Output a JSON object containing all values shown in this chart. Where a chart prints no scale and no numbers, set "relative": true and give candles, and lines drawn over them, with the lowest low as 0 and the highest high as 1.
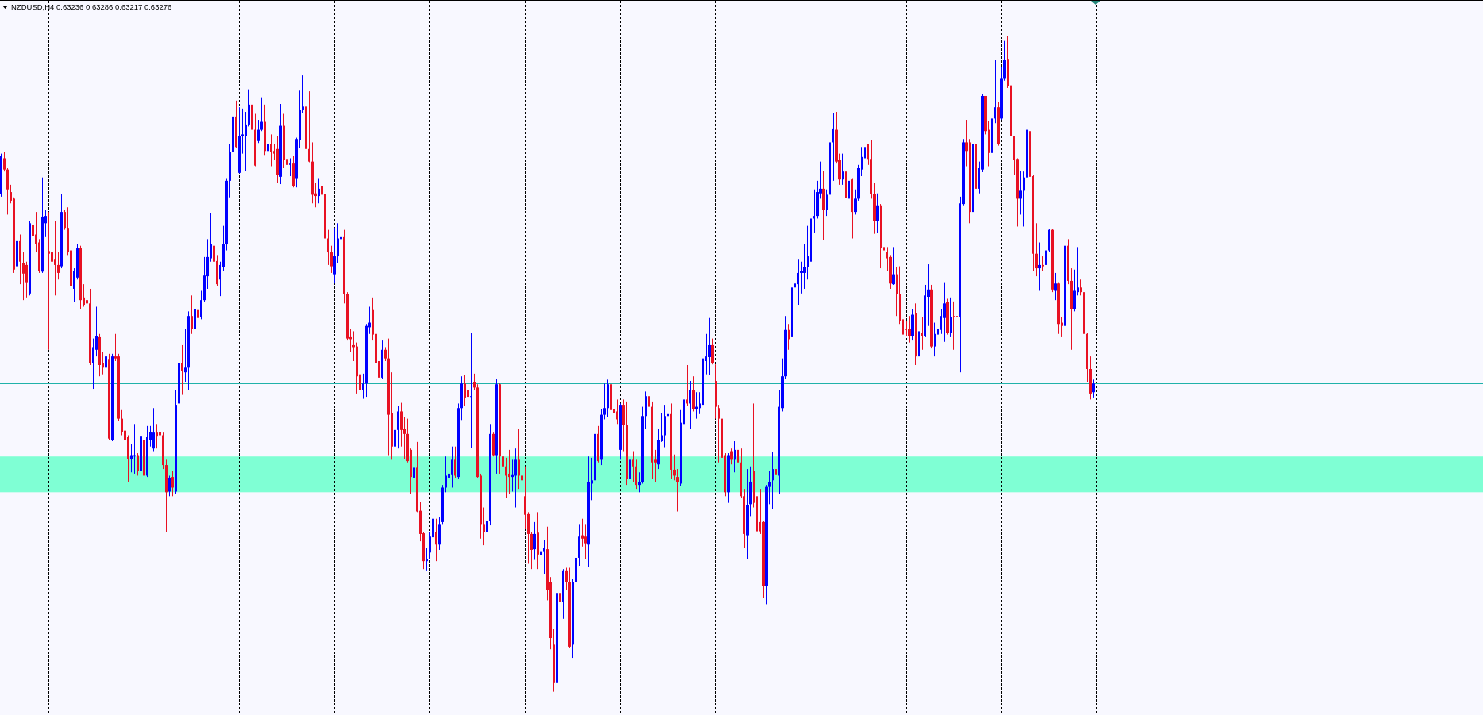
{
  "chart_data": {
    "type": "candlestick",
    "title": "NZDUSD,H4 0.63236 0.63286 0.63217 0.63276",
    "relative": true,
    "grid": "x",
    "categories": [
      null,
      null,
      null,
      null,
      null,
      null,
      null,
      null,
      null,
      null,
      null,
      null,
      null,
      null,
      null,
      null,
      null,
      null,
      null,
      null,
      null,
      null,
      null,
      null,
      null,
      null,
      null,
      null,
      null,
      null,
      null,
      null,
      null,
      null,
      null,
      null,
      null,
      null,
      null,
      null,
      null,
      null,
      null,
      null,
      null,
      null,
      null,
      null,
      null,
      null,
      null,
      null,
      null,
      null,
      null,
      null,
      null,
      null,
      null,
      null,
      null,
      null,
      null,
      null,
      null,
      null,
      null,
      null,
      null,
      null,
      null,
      null,
      null,
      null,
      null,
      null,
      null,
      null,
      null,
      null,
      null,
      null,
      null,
      null,
      null,
      null,
      null,
      null,
      null,
      null,
      null,
      null,
      null,
      null,
      null,
      null,
      null,
      null,
      null,
      null,
      null,
      null,
      null,
      null,
      null,
      null,
      null,
      null,
      null,
      null,
      null,
      null,
      null,
      null,
      null,
      null,
      null,
      null,
      null,
      null,
      null,
      null,
      null,
      null,
      null,
      null,
      null,
      null,
      null,
      null,
      null,
      null,
      null,
      null,
      null,
      null,
      null,
      null,
      null,
      null,
      null,
      null,
      null,
      null,
      null,
      null,
      null,
      null,
      null,
      null,
      null,
      null,
      null,
      null,
      null,
      null,
      null,
      null,
      null,
      null,
      null,
      null,
      null,
      null,
      null,
      null,
      null,
      null,
      null,
      null,
      null,
      null,
      null,
      null,
      null,
      null,
      null,
      null,
      null,
      null,
      null,
      null,
      null,
      null,
      null,
      null,
      null,
      null,
      null,
      null,
      null,
      null,
      null,
      null,
      null,
      null,
      null,
      null,
      null,
      null,
      null,
      null,
      null,
      null,
      null,
      null,
      null,
      null,
      null,
      null,
      null,
      null,
      null,
      null,
      null,
      null,
      null,
      null,
      null,
      null,
      null,
      null,
      null,
      null,
      null,
      null,
      null,
      null,
      null,
      null,
      null,
      null,
      null,
      null,
      null,
      null,
      null,
      null,
      null,
      null,
      null,
      null,
      null,
      null,
      null,
      null,
      null,
      null,
      null,
      null,
      null,
      null,
      null,
      null,
      null,
      null,
      null,
      null,
      null,
      null,
      null,
      null,
      null,
      null,
      null,
      null,
      null,
      null,
      null,
      null,
      null,
      null,
      null,
      null,
      null,
      null,
      null,
      null,
      null,
      null,
      null,
      null,
      null,
      null,
      null,
      null,
      null,
      null,
      null,
      null,
      null,
      null,
      null,
      null,
      null,
      null,
      null,
      null,
      null,
      null,
      null,
      null,
      null,
      null,
      null,
      null,
      null,
      null,
      null,
      null,
      null,
      null,
      null,
      null,
      null,
      null,
      null,
      null,
      null,
      null,
      null,
      null,
      null,
      null,
      null,
      null,
      null,
      null,
      null,
      null,
      null,
      null,
      null,
      null,
      null,
      null,
      null,
      null,
      null,
      null,
      null,
      null,
      null,
      null,
      null
    ],
    "ohlc": [
      [
        0.761,
        0.822,
        0.757,
        0.818
      ],
      [
        0.815,
        0.824,
        0.795,
        0.798
      ],
      [
        0.798,
        0.8,
        0.73,
        0.768
      ],
      [
        0.764,
        0.775,
        0.747,
        0.751
      ],
      [
        0.754,
        0.756,
        0.642,
        0.647
      ],
      [
        0.652,
        0.717,
        0.639,
        0.69
      ],
      [
        0.69,
        0.7,
        0.625,
        0.659
      ],
      [
        0.657,
        0.673,
        0.601,
        0.641
      ],
      [
        0.654,
        0.659,
        0.605,
        0.628
      ],
      [
        0.611,
        0.72,
        0.608,
        0.717
      ],
      [
        0.715,
        0.734,
        0.693,
        0.698
      ],
      [
        0.7,
        0.734,
        0.673,
        0.686
      ],
      [
        0.688,
        0.693,
        0.642,
        0.645
      ],
      [
        0.644,
        0.786,
        0.642,
        0.727
      ],
      [
        0.717,
        0.737,
        0.696,
        0.728
      ],
      [
        0.675,
        0.734,
        0.526,
        0.671
      ],
      [
        0.673,
        0.7,
        0.652,
        0.659
      ],
      [
        0.662,
        0.72,
        0.608,
        0.654
      ],
      [
        0.654,
        0.673,
        0.632,
        0.642
      ],
      [
        0.652,
        0.761,
        0.649,
        0.734
      ],
      [
        0.734,
        0.737,
        0.707,
        0.71
      ],
      [
        0.71,
        0.741,
        0.669,
        0.673
      ],
      [
        0.676,
        0.693,
        0.618,
        0.622
      ],
      [
        0.618,
        0.649,
        0.598,
        0.645
      ],
      [
        0.635,
        0.686,
        0.632,
        0.679
      ],
      [
        0.679,
        0.683,
        0.588,
        0.601
      ],
      [
        0.605,
        0.625,
        0.591,
        0.594
      ],
      [
        0.601,
        0.622,
        0.574,
        0.596
      ],
      [
        0.596,
        0.618,
        0.503,
        0.506
      ],
      [
        0.506,
        0.543,
        0.467,
        0.53
      ],
      [
        0.526,
        0.591,
        0.516,
        0.547
      ],
      [
        0.545,
        0.55,
        0.486,
        0.503
      ],
      [
        0.506,
        0.523,
        0.489,
        0.499
      ],
      [
        0.499,
        0.523,
        0.482,
        0.516
      ],
      [
        0.511,
        0.52,
        0.39,
        0.392
      ],
      [
        0.39,
        0.52,
        0.388,
        0.516
      ],
      [
        0.516,
        0.55,
        0.509,
        0.513
      ],
      [
        0.516,
        0.52,
        0.418,
        0.422
      ],
      [
        0.422,
        0.435,
        0.397,
        0.402
      ],
      [
        0.404,
        0.414,
        0.384,
        0.39
      ],
      [
        0.394,
        0.397,
        0.327,
        0.361
      ],
      [
        0.361,
        0.384,
        0.341,
        0.367
      ],
      [
        0.365,
        0.414,
        0.339,
        0.367
      ],
      [
        0.367,
        0.37,
        0.336,
        0.343
      ],
      [
        0.343,
        0.414,
        0.305,
        0.395
      ],
      [
        0.39,
        0.411,
        0.333,
        0.336
      ],
      [
        0.336,
        0.411,
        0.334,
        0.394
      ],
      [
        0.39,
        0.411,
        0.38,
        0.402
      ],
      [
        0.377,
        0.438,
        0.373,
        0.401
      ],
      [
        0.401,
        0.414,
        0.377,
        0.395
      ],
      [
        0.402,
        0.414,
        0.394,
        0.397
      ],
      [
        0.397,
        0.401,
        0.346,
        0.352
      ],
      [
        0.352,
        0.36,
        0.251,
        0.311
      ],
      [
        0.312,
        0.336,
        0.305,
        0.333
      ],
      [
        0.334,
        0.343,
        0.305,
        0.318
      ],
      [
        0.312,
        0.465,
        0.309,
        0.443
      ],
      [
        0.445,
        0.516,
        0.441,
        0.506
      ],
      [
        0.506,
        0.533,
        0.458,
        0.494
      ],
      [
        0.492,
        0.557,
        0.477,
        0.499
      ],
      [
        0.499,
        0.584,
        0.465,
        0.577
      ],
      [
        0.577,
        0.608,
        0.55,
        0.558
      ],
      [
        0.558,
        0.592,
        0.533,
        0.588
      ],
      [
        0.586,
        0.615,
        0.571,
        0.574
      ],
      [
        0.576,
        0.615,
        0.572,
        0.601
      ],
      [
        0.601,
        0.666,
        0.598,
        0.638
      ],
      [
        0.637,
        0.693,
        0.618,
        0.666
      ],
      [
        0.664,
        0.732,
        0.659,
        0.685
      ],
      [
        0.683,
        0.727,
        0.611,
        0.659
      ],
      [
        0.66,
        0.669,
        0.622,
        0.625
      ],
      [
        0.632,
        0.659,
        0.607,
        0.654
      ],
      [
        0.651,
        0.713,
        0.645,
        0.685
      ],
      [
        0.685,
        0.785,
        0.676,
        0.781
      ],
      [
        0.781,
        0.836,
        0.756,
        0.824
      ],
      [
        0.824,
        0.914,
        0.821,
        0.878
      ],
      [
        0.878,
        0.902,
        0.831,
        0.832
      ],
      [
        0.793,
        0.892,
        0.792,
        0.849
      ],
      [
        0.848,
        0.89,
        0.822,
        0.851
      ],
      [
        0.849,
        0.885,
        0.796,
        0.866
      ],
      [
        0.866,
        0.919,
        0.863,
        0.896
      ],
      [
        0.896,
        0.905,
        0.837,
        0.858
      ],
      [
        0.858,
        0.882,
        0.803,
        0.804
      ],
      [
        0.841,
        0.873,
        0.838,
        0.858
      ],
      [
        0.858,
        0.907,
        0.856,
        0.87
      ],
      [
        0.87,
        0.896,
        0.82,
        0.826
      ],
      [
        0.826,
        0.847,
        0.812,
        0.837
      ],
      [
        0.837,
        0.851,
        0.803,
        0.824
      ],
      [
        0.826,
        0.837,
        0.812,
        0.822
      ],
      [
        0.829,
        0.849,
        0.778,
        0.79
      ],
      [
        0.787,
        0.897,
        0.776,
        0.864
      ],
      [
        0.864,
        0.882,
        0.8,
        0.812
      ],
      [
        0.814,
        0.83,
        0.792,
        0.805
      ],
      [
        0.805,
        0.815,
        0.788,
        0.807
      ],
      [
        0.807,
        0.819,
        0.771,
        0.773
      ],
      [
        0.785,
        0.846,
        0.771,
        0.844
      ],
      [
        0.843,
        0.917,
        0.83,
        0.888
      ],
      [
        0.888,
        0.94,
        0.883,
        0.893
      ],
      [
        0.893,
        0.897,
        0.819,
        0.829
      ],
      [
        0.829,
        0.916,
        0.809,
        0.81
      ],
      [
        0.81,
        0.839,
        0.747,
        0.76
      ],
      [
        0.762,
        0.778,
        0.741,
        0.758
      ],
      [
        0.758,
        0.785,
        0.747,
        0.769
      ],
      [
        0.773,
        0.786,
        0.73,
        0.76
      ],
      [
        0.761,
        0.762,
        0.654,
        0.694
      ],
      [
        0.694,
        0.707,
        0.654,
        0.673
      ],
      [
        0.673,
        0.683,
        0.642,
        0.652
      ],
      [
        0.64,
        0.71,
        0.626,
        0.667
      ],
      [
        0.667,
        0.717,
        0.657,
        0.694
      ],
      [
        0.693,
        0.707,
        0.662,
        0.696
      ],
      [
        0.696,
        0.707,
        0.596,
        0.61
      ],
      [
        0.61,
        0.613,
        0.54,
        0.543
      ],
      [
        0.545,
        0.557,
        0.523,
        0.542
      ],
      [
        0.533,
        0.554,
        0.509,
        0.53
      ],
      [
        0.531,
        0.537,
        0.46,
        0.486
      ],
      [
        0.489,
        0.52,
        0.456,
        0.465
      ],
      [
        0.465,
        0.49,
        0.452,
        0.475
      ],
      [
        0.475,
        0.565,
        0.455,
        0.562
      ],
      [
        0.56,
        0.591,
        0.55,
        0.567
      ],
      [
        0.586,
        0.605,
        0.54,
        0.549
      ],
      [
        0.55,
        0.56,
        0.492,
        0.506
      ],
      [
        0.509,
        0.53,
        0.475,
        0.484
      ],
      [
        0.484,
        0.54,
        0.482,
        0.526
      ],
      [
        0.526,
        0.53,
        0.509,
        0.513
      ],
      [
        0.513,
        0.543,
        0.367,
        0.428
      ],
      [
        0.431,
        0.492,
        0.36,
        0.38
      ],
      [
        0.38,
        0.428,
        0.36,
        0.405
      ],
      [
        0.405,
        0.441,
        0.377,
        0.433
      ],
      [
        0.433,
        0.446,
        0.38,
        0.405
      ],
      [
        0.406,
        0.424,
        0.361,
        0.399
      ],
      [
        0.399,
        0.422,
        0.356,
        0.358
      ],
      [
        0.375,
        0.377,
        0.309,
        0.334
      ],
      [
        0.333,
        0.354,
        0.311,
        0.348
      ],
      [
        0.348,
        0.387,
        0.281,
        0.282
      ],
      [
        0.283,
        0.297,
        0.237,
        0.248
      ],
      [
        0.249,
        0.251,
        0.195,
        0.207
      ],
      [
        0.207,
        0.227,
        0.193,
        0.21
      ],
      [
        0.22,
        0.251,
        0.21,
        0.244
      ],
      [
        0.243,
        0.28,
        0.241,
        0.271
      ],
      [
        0.251,
        0.271,
        0.207,
        0.232
      ],
      [
        0.232,
        0.273,
        0.224,
        0.263
      ],
      [
        0.266,
        0.322,
        0.263,
        0.318
      ],
      [
        0.318,
        0.365,
        0.311,
        0.336
      ],
      [
        0.333,
        0.378,
        0.32,
        0.339
      ],
      [
        0.338,
        0.38,
        0.318,
        0.36
      ],
      [
        0.36,
        0.38,
        0.333,
        0.336
      ],
      [
        0.334,
        0.445,
        0.331,
        0.438
      ],
      [
        0.438,
        0.486,
        0.42,
        0.475
      ],
      [
        0.475,
        0.488,
        0.441,
        0.454
      ],
      [
        0.465,
        0.472,
        0.414,
        0.455
      ],
      [
        0.455,
        0.552,
        0.378,
        0.456
      ],
      [
        0.477,
        0.49,
        0.465,
        0.469
      ],
      [
        0.469,
        0.474,
        0.333,
        0.334
      ],
      [
        0.336,
        0.339,
        0.241,
        0.263
      ],
      [
        0.263,
        0.288,
        0.231,
        0.251
      ],
      [
        0.251,
        0.286,
        0.237,
        0.268
      ],
      [
        0.268,
        0.414,
        0.261,
        0.399
      ],
      [
        0.399,
        0.401,
        0.365,
        0.367
      ],
      [
        0.367,
        0.482,
        0.339,
        0.474
      ],
      [
        0.474,
        0.475,
        0.339,
        0.365
      ],
      [
        0.365,
        0.39,
        0.343,
        0.35
      ],
      [
        0.35,
        0.363,
        0.302,
        0.336
      ],
      [
        0.339,
        0.375,
        0.309,
        0.334
      ],
      [
        0.334,
        0.36,
        0.312,
        0.338
      ],
      [
        0.336,
        0.377,
        0.288,
        0.36
      ],
      [
        0.36,
        0.407,
        0.316,
        0.336
      ],
      [
        0.336,
        0.353,
        0.326,
        0.329
      ],
      [
        0.305,
        0.35,
        0.256,
        0.277
      ],
      [
        0.278,
        0.281,
        0.203,
        0.248
      ],
      [
        0.248,
        0.251,
        0.195,
        0.224
      ],
      [
        0.225,
        0.266,
        0.209,
        0.248
      ],
      [
        0.25,
        0.281,
        0.195,
        0.217
      ],
      [
        0.216,
        0.234,
        0.207,
        0.222
      ],
      [
        0.222,
        0.239,
        0.188,
        0.227
      ],
      [
        0.225,
        0.259,
        0.148,
        0.164
      ],
      [
        0.176,
        0.183,
        0.074,
        0.091
      ],
      [
        0.081,
        0.105,
        0.01,
        0.023
      ],
      [
        0.023,
        0.173,
        0,
        0.159
      ],
      [
        0.159,
        0.176,
        0.139,
        0.146
      ],
      [
        0.146,
        0.195,
        0.12,
        0.193
      ],
      [
        0.193,
        0.197,
        0.163,
        0.176
      ],
      [
        0.176,
        0.197,
        0.076,
        0.078
      ],
      [
        0.081,
        0.18,
        0.061,
        0.176
      ],
      [
        0.175,
        0.227,
        0.171,
        0.212
      ],
      [
        0.212,
        0.263,
        0.2,
        0.244
      ],
      [
        0.246,
        0.271,
        0.229,
        0.241
      ],
      [
        0.244,
        0.263,
        0.21,
        0.234
      ],
      [
        0.232,
        0.365,
        0.198,
        0.326
      ],
      [
        0.324,
        0.363,
        0.299,
        0.329
      ],
      [
        0.329,
        0.429,
        0.304,
        0.399
      ],
      [
        0.399,
        0.411,
        0.356,
        0.358
      ],
      [
        0.36,
        0.436,
        0.352,
        0.428
      ],
      [
        0.428,
        0.475,
        0.421,
        0.438
      ],
      [
        0.438,
        0.481,
        0.424,
        0.474
      ],
      [
        0.474,
        0.509,
        0.395,
        0.435
      ],
      [
        0.436,
        0.499,
        0.421,
        0.431
      ],
      [
        0.433,
        0.451,
        0.414,
        0.421
      ],
      [
        0.375,
        0.445,
        0.36,
        0.443
      ],
      [
        0.443,
        0.451,
        0.373,
        0.413
      ],
      [
        0.413,
        0.448,
        0.322,
        0.331
      ],
      [
        0.331,
        0.367,
        0.305,
        0.36
      ],
      [
        0.36,
        0.373,
        0.326,
        0.35
      ],
      [
        0.35,
        0.36,
        0.316,
        0.322
      ],
      [
        0.322,
        0.341,
        0.311,
        0.327
      ],
      [
        0.326,
        0.44,
        0.324,
        0.426
      ],
      [
        0.426,
        0.463,
        0.407,
        0.456
      ],
      [
        0.456,
        0.472,
        0.421,
        0.44
      ],
      [
        0.44,
        0.448,
        0.331,
        0.356
      ],
      [
        0.36,
        0.375,
        0.326,
        0.356
      ],
      [
        0.353,
        0.407,
        0.346,
        0.39
      ],
      [
        0.388,
        0.431,
        0.387,
        0.397
      ],
      [
        0.397,
        0.443,
        0.379,
        0.426
      ],
      [
        0.426,
        0.465,
        0.401,
        0.429
      ],
      [
        0.429,
        0.445,
        0.331,
        0.345
      ],
      [
        0.345,
        0.368,
        0.329,
        0.336
      ],
      [
        0.334,
        0.346,
        0.282,
        0.326
      ],
      [
        0.324,
        0.435,
        0.32,
        0.416
      ],
      [
        0.414,
        0.469,
        0.411,
        0.451
      ],
      [
        0.451,
        0.503,
        0.441,
        0.445
      ],
      [
        0.445,
        0.479,
        0.406,
        0.465
      ],
      [
        0.465,
        0.486,
        0.433,
        0.436
      ],
      [
        0.436,
        0.462,
        0.422,
        0.44
      ],
      [
        0.438,
        0.462,
        0.429,
        0.445
      ],
      [
        0.443,
        0.526,
        0.441,
        0.513
      ],
      [
        0.509,
        0.55,
        0.489,
        0.516
      ],
      [
        0.515,
        0.574,
        0.488,
        0.533
      ],
      [
        0.533,
        0.543,
        0.504,
        0.506
      ],
      [
        0.479,
        0.504,
        0.422,
        0.44
      ],
      [
        0.438,
        0.443,
        0.356,
        0.422
      ],
      [
        0.422,
        0.424,
        0.35,
        0.363
      ],
      [
        0.367,
        0.37,
        0.305,
        0.311
      ],
      [
        0.311,
        0.37,
        0.295,
        0.367
      ],
      [
        0.373,
        0.377,
        0.353,
        0.36
      ],
      [
        0.36,
        0.388,
        0.341,
        0.375
      ],
      [
        0.375,
        0.424,
        0.343,
        0.356
      ],
      [
        0.356,
        0.377,
        0.302,
        0.305
      ],
      [
        0.305,
        0.316,
        0.227,
        0.248
      ],
      [
        0.246,
        0.346,
        0.21,
        0.292
      ],
      [
        0.293,
        0.35,
        0.275,
        0.327
      ],
      [
        0.343,
        0.445,
        0.288,
        0.295
      ],
      [
        0.305,
        0.309,
        0.251,
        0.252
      ],
      [
        0.266,
        0.316,
        0.248,
        0.252
      ],
      [
        0.266,
        0.268,
        0.152,
        0.169
      ],
      [
        0.169,
        0.322,
        0.142,
        0.319
      ],
      [
        0.319,
        0.343,
        0.293,
        0.326
      ],
      [
        0.329,
        0.372,
        0.285,
        0.346
      ],
      [
        0.346,
        0.363,
        0.309,
        0.338
      ],
      [
        0.336,
        0.465,
        0.309,
        0.44
      ],
      [
        0.438,
        0.513,
        0.433,
        0.486
      ],
      [
        0.486,
        0.577,
        0.482,
        0.556
      ],
      [
        0.556,
        0.565,
        0.526,
        0.542
      ],
      [
        0.545,
        0.637,
        0.526,
        0.62
      ],
      [
        0.62,
        0.658,
        0.608,
        0.626
      ],
      [
        0.625,
        0.662,
        0.594,
        0.642
      ],
      [
        0.642,
        0.659,
        0.611,
        0.645
      ],
      [
        0.642,
        0.685,
        0.618,
        0.651
      ],
      [
        0.651,
        0.713,
        0.632,
        0.667
      ],
      [
        0.659,
        0.73,
        0.632,
        0.724
      ],
      [
        0.724,
        0.768,
        0.703,
        0.728
      ],
      [
        0.728,
        0.781,
        0.724,
        0.764
      ],
      [
        0.762,
        0.81,
        0.754,
        0.769
      ],
      [
        0.769,
        0.796,
        0.692,
        0.737
      ],
      [
        0.737,
        0.768,
        0.728,
        0.76
      ],
      [
        0.76,
        0.853,
        0.744,
        0.839
      ],
      [
        0.839,
        0.883,
        0.781,
        0.86
      ],
      [
        0.858,
        0.885,
        0.807,
        0.81
      ],
      [
        0.812,
        0.822,
        0.775,
        0.783
      ],
      [
        0.783,
        0.822,
        0.775,
        0.795
      ],
      [
        0.795,
        0.817,
        0.753,
        0.755
      ],
      [
        0.754,
        0.796,
        0.732,
        0.781
      ],
      [
        0.783,
        0.785,
        0.694,
        0.734
      ],
      [
        0.734,
        0.768,
        0.73,
        0.754
      ],
      [
        0.754,
        0.805,
        0.751,
        0.8
      ],
      [
        0.798,
        0.832,
        0.788,
        0.817
      ],
      [
        0.815,
        0.851,
        0.805,
        0.832
      ],
      [
        0.836,
        0.837,
        0.805,
        0.814
      ],
      [
        0.814,
        0.843,
        0.754,
        0.761
      ],
      [
        0.761,
        0.778,
        0.701,
        0.72
      ],
      [
        0.72,
        0.762,
        0.703,
        0.744
      ],
      [
        0.744,
        0.746,
        0.649,
        0.679
      ],
      [
        0.681,
        0.688,
        0.673,
        0.676
      ],
      [
        0.674,
        0.681,
        0.645,
        0.664
      ],
      [
        0.666,
        0.669,
        0.618,
        0.626
      ],
      [
        0.625,
        0.681,
        0.624,
        0.64
      ],
      [
        0.64,
        0.651,
        0.577,
        0.61
      ],
      [
        0.61,
        0.652,
        0.565,
        0.569
      ],
      [
        0.572,
        0.574,
        0.547,
        0.549
      ],
      [
        0.558,
        0.569,
        0.547,
        0.556
      ],
      [
        0.558,
        0.577,
        0.537,
        0.547
      ],
      [
        0.547,
        0.588,
        0.54,
        0.579
      ],
      [
        0.581,
        0.596,
        0.503,
        0.516
      ],
      [
        0.516,
        0.558,
        0.496,
        0.554
      ],
      [
        0.552,
        0.576,
        0.526,
        0.547
      ],
      [
        0.547,
        0.624,
        0.545,
        0.608
      ],
      [
        0.606,
        0.655,
        0.562,
        0.617
      ],
      [
        0.617,
        0.624,
        0.528,
        0.531
      ],
      [
        0.531,
        0.567,
        0.516,
        0.55
      ],
      [
        0.549,
        0.606,
        0.547,
        0.558
      ],
      [
        0.556,
        0.588,
        0.55,
        0.577
      ],
      [
        0.574,
        0.628,
        0.538,
        0.596
      ],
      [
        0.598,
        0.603,
        0.549,
        0.552
      ],
      [
        0.552,
        0.605,
        0.545,
        0.576
      ],
      [
        0.577,
        0.599,
        0.526,
        0.576
      ],
      [
        0.577,
        0.628,
        0.567,
        0.576
      ],
      [
        0.576,
        0.757,
        0.492,
        0.747
      ],
      [
        0.746,
        0.844,
        0.744,
        0.839
      ],
      [
        0.839,
        0.873,
        0.803,
        0.826
      ],
      [
        0.839,
        0.844,
        0.717,
        0.734
      ],
      [
        0.734,
        0.871,
        0.732,
        0.837
      ],
      [
        0.837,
        0.843,
        0.747,
        0.769
      ],
      [
        0.769,
        0.81,
        0.762,
        0.8
      ],
      [
        0.798,
        0.912,
        0.794,
        0.909
      ],
      [
        0.909,
        0.909,
        0.851,
        0.856
      ],
      [
        0.858,
        0.871,
        0.803,
        0.823
      ],
      [
        0.823,
        0.904,
        0.814,
        0.875
      ],
      [
        0.875,
        0.964,
        0.868,
        0.892
      ],
      [
        0.892,
        0.9,
        0.834,
        0.836
      ],
      [
        0.875,
        0.953,
        0.873,
        0.936
      ],
      [
        0.936,
        0.992,
        0.932,
        0.964
      ],
      [
        0.965,
        1,
        0.921,
        0.924
      ],
      [
        0.925,
        0.929,
        0.844,
        0.848
      ],
      [
        0.848,
        0.849,
        0.79,
        0.812
      ],
      [
        0.814,
        0.815,
        0.712,
        0.754
      ],
      [
        0.754,
        0.796,
        0.73,
        0.766
      ],
      [
        0.766,
        0.795,
        0.712,
        0.786
      ],
      [
        0.786,
        0.86,
        0.785,
        0.858
      ],
      [
        0.856,
        0.868,
        0.771,
        0.787
      ],
      [
        0.788,
        0.79,
        0.645,
        0.671
      ],
      [
        0.671,
        0.717,
        0.637,
        0.649
      ],
      [
        0.649,
        0.688,
        0.615,
        0.654
      ],
      [
        0.654,
        0.667,
        0.645,
        0.652
      ],
      [
        0.654,
        0.692,
        0.599,
        0.676
      ],
      [
        0.676,
        0.708,
        0.674,
        0.707
      ],
      [
        0.707,
        0.708,
        0.613,
        0.617
      ],
      [
        0.615,
        0.642,
        0.601,
        0.626
      ],
      [
        0.626,
        0.628,
        0.55,
        0.565
      ],
      [
        0.567,
        0.576,
        0.545,
        0.562
      ],
      [
        0.562,
        0.698,
        0.558,
        0.683
      ],
      [
        0.683,
        0.693,
        0.625,
        0.63
      ],
      [
        0.63,
        0.649,
        0.526,
        0.588
      ],
      [
        0.588,
        0.647,
        0.584,
        0.615
      ],
      [
        0.613,
        0.681,
        0.608,
        0.62
      ],
      [
        0.62,
        0.632,
        0.608,
        0.613
      ],
      [
        0.613,
        0.632,
        0.547,
        0.55
      ],
      [
        0.55,
        0.551,
        0.477,
        0.497
      ],
      [
        0.497,
        0.516,
        0.451,
        0.46
      ],
      [
        0.462,
        0.481,
        0.454,
        0.475
      ]
    ],
    "colors": [
      "#0000ff",
      "#e81123",
      "#e81123",
      "#e81123",
      "#e81123",
      "#0000ff",
      "#e81123",
      "#e81123",
      "#e81123",
      "#0000ff",
      "#e81123",
      "#e81123",
      "#e81123",
      "#0000ff",
      "#0000ff",
      "#e81123",
      "#e81123",
      "#e81123",
      "#e81123",
      "#0000ff",
      "#e81123",
      "#e81123",
      "#e81123",
      "#0000ff",
      "#0000ff",
      "#e81123",
      "#e81123",
      "#e81123",
      "#e81123",
      "#0000ff",
      "#0000ff",
      "#e81123",
      "#e81123",
      "#0000ff",
      "#e81123",
      "#0000ff",
      "#e81123",
      "#e81123",
      "#e81123",
      "#e81123",
      "#e81123",
      "#0000ff",
      "#0000ff",
      "#e81123",
      "#0000ff",
      "#e81123",
      "#0000ff",
      "#0000ff",
      "#0000ff",
      "#e81123",
      "#e81123",
      "#e81123",
      "#e81123",
      "#0000ff",
      "#e81123",
      "#0000ff",
      "#0000ff",
      "#e81123",
      "#0000ff",
      "#0000ff",
      "#e81123",
      "#0000ff",
      "#e81123",
      "#0000ff",
      "#0000ff",
      "#0000ff",
      "#0000ff",
      "#e81123",
      "#e81123",
      "#0000ff",
      "#0000ff",
      "#0000ff",
      "#0000ff",
      "#0000ff",
      "#e81123",
      "#0000ff",
      "#0000ff",
      "#0000ff",
      "#0000ff",
      "#e81123",
      "#e81123",
      "#0000ff",
      "#0000ff",
      "#e81123",
      "#0000ff",
      "#e81123",
      "#e81123",
      "#e81123",
      "#0000ff",
      "#e81123",
      "#e81123",
      "#0000ff",
      "#e81123",
      "#0000ff",
      "#0000ff",
      "#0000ff",
      "#e81123",
      "#e81123",
      "#e81123",
      "#e81123",
      "#0000ff",
      "#e81123",
      "#e81123",
      "#e81123",
      "#e81123",
      "#0000ff",
      "#0000ff",
      "#0000ff",
      "#e81123",
      "#e81123",
      "#e81123",
      "#e81123",
      "#e81123",
      "#e81123",
      "#0000ff",
      "#0000ff",
      "#0000ff",
      "#e81123",
      "#e81123",
      "#e81123",
      "#0000ff",
      "#e81123",
      "#e81123",
      "#e81123",
      "#0000ff",
      "#0000ff",
      "#e81123",
      "#e81123",
      "#e81123",
      "#e81123",
      "#0000ff",
      "#e81123",
      "#e81123",
      "#e81123",
      "#0000ff",
      "#0000ff",
      "#0000ff",
      "#e81123",
      "#0000ff",
      "#0000ff",
      "#0000ff",
      "#0000ff",
      "#0000ff",
      "#e81123",
      "#0000ff",
      "#0000ff",
      "#e81123",
      "#e81123",
      "#0000ff",
      "#e81123",
      "#e81123",
      "#e81123",
      "#e81123",
      "#0000ff",
      "#0000ff",
      "#e81123",
      "#0000ff",
      "#e81123",
      "#e81123",
      "#e81123",
      "#e81123",
      "#0000ff",
      "#0000ff",
      "#e81123",
      "#e81123",
      "#e81123",
      "#e81123",
      "#e81123",
      "#0000ff",
      "#e81123",
      "#0000ff",
      "#0000ff",
      "#e81123",
      "#e81123",
      "#e81123",
      "#0000ff",
      "#e81123",
      "#0000ff",
      "#e81123",
      "#e81123",
      "#0000ff",
      "#0000ff",
      "#0000ff",
      "#e81123",
      "#e81123",
      "#0000ff",
      "#0000ff",
      "#0000ff",
      "#e81123",
      "#0000ff",
      "#0000ff",
      "#0000ff",
      "#e81123",
      "#e81123",
      "#e81123",
      "#0000ff",
      "#e81123",
      "#e81123",
      "#0000ff",
      "#e81123",
      "#e81123",
      "#0000ff",
      "#0000ff",
      "#0000ff",
      "#e81123",
      "#e81123",
      "#e81123",
      "#0000ff",
      "#0000ff",
      "#0000ff",
      "#0000ff",
      "#e81123",
      "#e81123",
      "#e81123",
      "#0000ff",
      "#0000ff",
      "#e81123",
      "#0000ff",
      "#e81123",
      "#0000ff",
      "#0000ff",
      "#0000ff",
      "#0000ff",
      "#0000ff",
      "#e81123",
      "#e81123",
      "#e81123",
      "#e81123",
      "#e81123",
      "#0000ff",
      "#e81123",
      "#0000ff",
      "#e81123",
      "#e81123",
      "#e81123",
      "#0000ff",
      "#0000ff",
      "#e81123",
      "#e81123",
      "#e81123",
      "#e81123",
      "#0000ff",
      "#0000ff",
      "#0000ff",
      "#e81123",
      "#0000ff",
      "#0000ff",
      "#0000ff",
      "#e81123",
      "#0000ff",
      "#0000ff",
      "#0000ff",
      "#0000ff",
      "#0000ff",
      "#0000ff",
      "#0000ff",
      "#0000ff",
      "#0000ff",
      "#0000ff",
      "#e81123",
      "#0000ff",
      "#0000ff",
      "#0000ff",
      "#e81123",
      "#e81123",
      "#0000ff",
      "#e81123",
      "#0000ff",
      "#e81123",
      "#0000ff",
      "#0000ff",
      "#0000ff",
      "#0000ff",
      "#e81123",
      "#e81123",
      "#e81123",
      "#0000ff",
      "#e81123",
      "#e81123",
      "#e81123",
      "#e81123",
      "#0000ff",
      "#e81123",
      "#e81123",
      "#e81123",
      "#e81123",
      "#e81123",
      "#0000ff",
      "#e81123",
      "#0000ff",
      "#e81123",
      "#0000ff",
      "#0000ff",
      "#e81123",
      "#0000ff",
      "#0000ff",
      "#0000ff",
      "#0000ff",
      "#e81123",
      "#0000ff",
      "#e81123",
      "#e81123",
      "#0000ff",
      "#0000ff",
      "#e81123",
      "#e81123",
      "#0000ff",
      "#e81123",
      "#0000ff",
      "#0000ff",
      "#e81123",
      "#e81123",
      "#0000ff",
      "#0000ff",
      "#e81123",
      "#0000ff",
      "#0000ff",
      "#e81123",
      "#e81123",
      "#e81123",
      "#e81123",
      "#0000ff",
      "#0000ff",
      "#0000ff",
      "#e81123",
      "#e81123",
      "#e81123",
      "#0000ff",
      "#e81123",
      "#0000ff",
      "#0000ff",
      "#e81123",
      "#0000ff",
      "#e81123",
      "#e81123",
      "#0000ff",
      "#e81123",
      "#e81123",
      "#0000ff",
      "#0000ff",
      "#e81123",
      "#e81123",
      "#e81123",
      "#e81123",
      "#0000ff"
    ],
    "ref_lines": [
      {
        "axis": "y",
        "value": 0.475,
        "color": "#20b2aa"
      }
    ],
    "bands": [
      {
        "axis": "y",
        "from": 0.311,
        "to": 0.365,
        "color": "#7fffd4"
      }
    ]
  }
}
